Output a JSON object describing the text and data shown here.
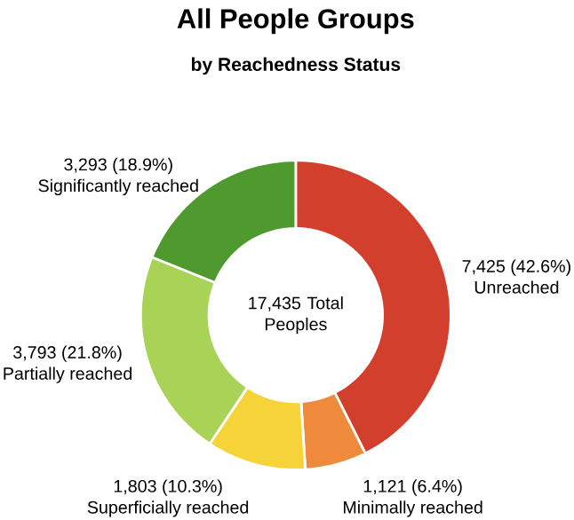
{
  "chart_data": {
    "type": "donut",
    "title": "All People Groups",
    "subtitle": "by Reachedness Status",
    "categories": [
      "Unreached",
      "Minimally reached",
      "Superficially reached",
      "Partially reached",
      "Significantly reached"
    ],
    "values": [
      7425,
      1121,
      1803,
      3793,
      3293
    ],
    "colors": [
      "#d23f2c",
      "#ef8a3c",
      "#f7d33a",
      "#a9d356",
      "#4e9a2e"
    ],
    "value_labels": [
      "7,425 (42.6%)",
      "1,121 (6.4%)",
      "1,803 (10.3%)",
      "3,793 (21.8%)",
      "3,293 (18.9%)"
    ],
    "annotations": [
      "17,435 Total Peoples"
    ]
  }
}
